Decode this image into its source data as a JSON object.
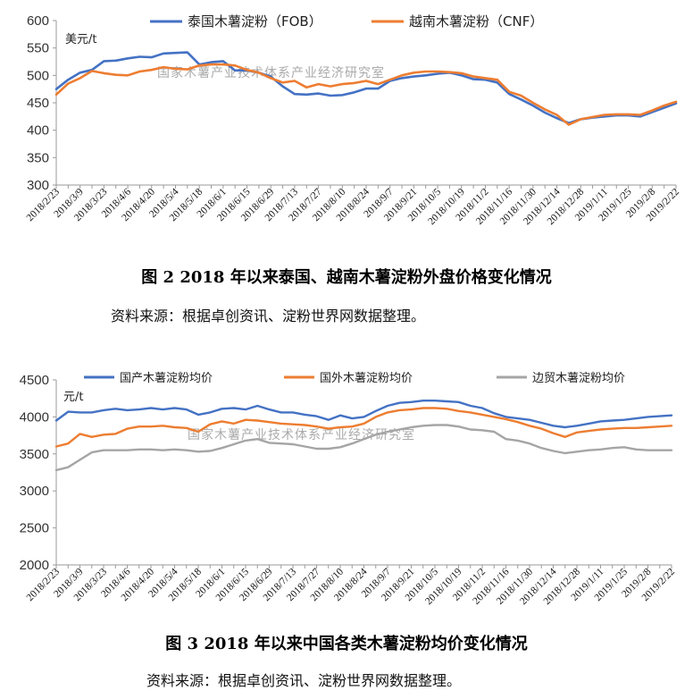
{
  "chart_data": [
    {
      "type": "line",
      "unit": "美元/t",
      "ylim": [
        300,
        600
      ],
      "yticks": [
        300,
        350,
        400,
        450,
        500,
        550,
        600
      ],
      "grid": false,
      "legend_position": "top",
      "watermark": "国家木薯产业技术体系产业经济研究室",
      "x_tick_labels": [
        "2018/2/23",
        "2018/3/9",
        "2018/3/23",
        "2018/4/6",
        "2018/4/20",
        "2018/5/4",
        "2018/5/18",
        "2018/6/1",
        "2018/6/15",
        "2018/6/29",
        "2018/7/13",
        "2018/7/27",
        "2018/8/10",
        "2018/8/24",
        "2018/9/7",
        "2018/9/21",
        "2018/10/5",
        "2018/10/19",
        "2018/11/2",
        "2018/11/16",
        "2018/11/30",
        "2018/12/14",
        "2018/12/28",
        "2019/1/11",
        "2019/1/25",
        "2019/2/8",
        "2019/2/22"
      ],
      "x": [
        "2018/2/23",
        "2018/3/2",
        "2018/3/9",
        "2018/3/16",
        "2018/3/23",
        "2018/3/30",
        "2018/4/6",
        "2018/4/13",
        "2018/4/20",
        "2018/4/27",
        "2018/5/4",
        "2018/5/11",
        "2018/5/18",
        "2018/5/25",
        "2018/6/1",
        "2018/6/8",
        "2018/6/15",
        "2018/6/22",
        "2018/6/29",
        "2018/7/6",
        "2018/7/13",
        "2018/7/20",
        "2018/7/27",
        "2018/8/3",
        "2018/8/10",
        "2018/8/17",
        "2018/8/24",
        "2018/8/31",
        "2018/9/7",
        "2018/9/14",
        "2018/9/21",
        "2018/9/28",
        "2018/10/5",
        "2018/10/12",
        "2018/10/19",
        "2018/10/26",
        "2018/11/2",
        "2018/11/9",
        "2018/11/16",
        "2018/11/23",
        "2018/11/30",
        "2018/12/7",
        "2018/12/14",
        "2018/12/21",
        "2018/12/28",
        "2019/1/4",
        "2019/1/11",
        "2019/1/18",
        "2019/1/25",
        "2019/2/1",
        "2019/2/8",
        "2019/2/15",
        "2019/2/22"
      ],
      "series": [
        {
          "name": "泰国木薯淀粉（FOB）",
          "color": "#4472c4",
          "values": [
            475,
            492,
            505,
            510,
            526,
            527,
            531,
            534,
            533,
            540,
            541,
            542,
            520,
            524,
            526,
            509,
            509,
            505,
            498,
            480,
            466,
            465,
            467,
            463,
            464,
            469,
            476,
            476,
            490,
            495,
            498,
            500,
            503,
            505,
            500,
            493,
            492,
            487,
            466,
            456,
            445,
            432,
            422,
            413,
            420,
            423,
            425,
            427,
            427,
            425,
            433,
            441,
            449
          ]
        },
        {
          "name": "越南木薯淀粉（CNF）",
          "color": "#ed7d31",
          "values": [
            465,
            485,
            495,
            508,
            504,
            501,
            500,
            507,
            510,
            515,
            512,
            511,
            518,
            520,
            520,
            518,
            510,
            505,
            495,
            487,
            490,
            478,
            484,
            480,
            484,
            486,
            490,
            484,
            492,
            500,
            505,
            507,
            507,
            506,
            504,
            498,
            495,
            492,
            470,
            463,
            450,
            438,
            428,
            410,
            420,
            424,
            428,
            429,
            429,
            428,
            436,
            445,
            452
          ]
        }
      ]
    },
    {
      "type": "line",
      "unit": "元/t",
      "ylim": [
        2000,
        4500
      ],
      "yticks": [
        2000,
        2500,
        3000,
        3500,
        4000,
        4500
      ],
      "grid": false,
      "legend_position": "top",
      "watermark": "国家木薯产业技术体系产业经济研究室",
      "x_tick_labels": [
        "2018/2/23",
        "2018/3/9",
        "2018/3/23",
        "2018/4/6",
        "2018/4/20",
        "2018/5/4",
        "2018/5/18",
        "2018/6/1",
        "2018/6/15",
        "2018/6/29",
        "2018/7/13",
        "2018/7/27",
        "2018/8/10",
        "2018/8/24",
        "2018/9/7",
        "2018/9/21",
        "2018/10/5",
        "2018/10/19",
        "2018/11/2",
        "2018/11/16",
        "2018/11/30",
        "2018/12/14",
        "2018/12/28",
        "2019/1/11",
        "2019/1/25",
        "2019/2/8",
        "2019/2/22"
      ],
      "x": [
        "2018/2/23",
        "2018/3/2",
        "2018/3/9",
        "2018/3/16",
        "2018/3/23",
        "2018/3/30",
        "2018/4/6",
        "2018/4/13",
        "2018/4/20",
        "2018/4/27",
        "2018/5/4",
        "2018/5/11",
        "2018/5/18",
        "2018/5/25",
        "2018/6/1",
        "2018/6/8",
        "2018/6/15",
        "2018/6/22",
        "2018/6/29",
        "2018/7/6",
        "2018/7/13",
        "2018/7/20",
        "2018/7/27",
        "2018/8/3",
        "2018/8/10",
        "2018/8/17",
        "2018/8/24",
        "2018/8/31",
        "2018/9/7",
        "2018/9/14",
        "2018/9/21",
        "2018/9/28",
        "2018/10/5",
        "2018/10/12",
        "2018/10/19",
        "2018/10/26",
        "2018/11/2",
        "2018/11/9",
        "2018/11/16",
        "2018/11/23",
        "2018/11/30",
        "2018/12/7",
        "2018/12/14",
        "2018/12/21",
        "2018/12/28",
        "2019/1/4",
        "2019/1/11",
        "2019/1/18",
        "2019/1/25",
        "2019/2/1",
        "2019/2/8",
        "2019/2/15",
        "2019/2/22"
      ],
      "series": [
        {
          "name": "国产木薯淀粉均价",
          "color": "#4472c4",
          "values": [
            3950,
            4070,
            4060,
            4060,
            4090,
            4110,
            4090,
            4100,
            4120,
            4100,
            4120,
            4100,
            4030,
            4060,
            4110,
            4120,
            4100,
            4150,
            4100,
            4060,
            4060,
            4030,
            4010,
            3960,
            4020,
            3980,
            4000,
            4080,
            4150,
            4190,
            4200,
            4220,
            4220,
            4210,
            4200,
            4150,
            4120,
            4050,
            4000,
            3980,
            3960,
            3920,
            3880,
            3860,
            3880,
            3910,
            3940,
            3950,
            3960,
            3980,
            4000,
            4010,
            4020
          ]
        },
        {
          "name": "国外木薯淀粉均价",
          "color": "#ed7d31",
          "values": [
            3600,
            3640,
            3770,
            3730,
            3760,
            3770,
            3840,
            3870,
            3870,
            3880,
            3860,
            3850,
            3800,
            3900,
            3940,
            3910,
            3960,
            3950,
            3930,
            3910,
            3900,
            3890,
            3870,
            3840,
            3860,
            3870,
            3910,
            4000,
            4060,
            4090,
            4100,
            4120,
            4120,
            4110,
            4080,
            4060,
            4030,
            4000,
            3970,
            3930,
            3880,
            3840,
            3780,
            3730,
            3790,
            3810,
            3830,
            3840,
            3850,
            3850,
            3860,
            3870,
            3880
          ]
        },
        {
          "name": "边贸木薯淀粉均价",
          "color": "#a5a5a5",
          "values": [
            3280,
            3320,
            3420,
            3520,
            3550,
            3550,
            3550,
            3560,
            3560,
            3550,
            3560,
            3550,
            3530,
            3540,
            3580,
            3630,
            3680,
            3700,
            3650,
            3640,
            3630,
            3600,
            3570,
            3570,
            3590,
            3640,
            3700,
            3760,
            3800,
            3830,
            3860,
            3880,
            3890,
            3890,
            3870,
            3830,
            3820,
            3800,
            3700,
            3680,
            3640,
            3580,
            3540,
            3510,
            3530,
            3550,
            3560,
            3580,
            3590,
            3560,
            3550,
            3550,
            3550
          ]
        }
      ]
    }
  ],
  "captions": {
    "fig2_title": "图 2    2018 年以来泰国、越南木薯淀粉外盘价格变化情况",
    "fig2_source": "资料来源：根据卓创资讯、淀粉世界网数据整理。",
    "fig3_title": "图 3    2018 年以来中国各类木薯淀粉均价变化情况",
    "fig3_source": "资料来源：根据卓创资讯、淀粉世界网数据整理。"
  }
}
